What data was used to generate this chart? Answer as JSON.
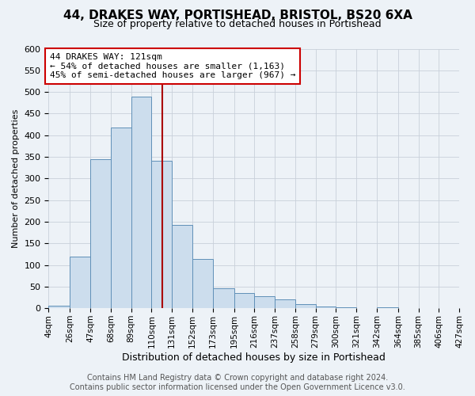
{
  "title_line1": "44, DRAKES WAY, PORTISHEAD, BRISTOL, BS20 6XA",
  "title_line2": "Size of property relative to detached houses in Portishead",
  "xlabel": "Distribution of detached houses by size in Portishead",
  "ylabel": "Number of detached properties",
  "bin_edges": [
    4,
    26,
    47,
    68,
    89,
    110,
    131,
    152,
    173,
    195,
    216,
    237,
    258,
    279,
    300,
    321,
    342,
    364,
    385,
    406,
    427
  ],
  "bin_counts": [
    5,
    120,
    345,
    417,
    490,
    340,
    192,
    113,
    46,
    35,
    28,
    20,
    10,
    4,
    3,
    1,
    2,
    1,
    0,
    1
  ],
  "bar_color": "#ccdded",
  "bar_edge_color": "#6090b8",
  "vline_color": "#aa0000",
  "vline_x": 121,
  "annotation_text_line1": "44 DRAKES WAY: 121sqm",
  "annotation_text_line2": "← 54% of detached houses are smaller (1,163)",
  "annotation_text_line3": "45% of semi-detached houses are larger (967) →",
  "annotation_box_color": "#ffffff",
  "annotation_box_edge": "#cc0000",
  "ylim": [
    0,
    600
  ],
  "yticks": [
    0,
    50,
    100,
    150,
    200,
    250,
    300,
    350,
    400,
    450,
    500,
    550,
    600
  ],
  "tick_labels": [
    "4sqm",
    "26sqm",
    "47sqm",
    "68sqm",
    "89sqm",
    "110sqm",
    "131sqm",
    "152sqm",
    "173sqm",
    "195sqm",
    "216sqm",
    "237sqm",
    "258sqm",
    "279sqm",
    "300sqm",
    "321sqm",
    "342sqm",
    "364sqm",
    "385sqm",
    "406sqm",
    "427sqm"
  ],
  "footer_line1": "Contains HM Land Registry data © Crown copyright and database right 2024.",
  "footer_line2": "Contains public sector information licensed under the Open Government Licence v3.0.",
  "grid_color": "#c8d0da",
  "background_color": "#edf2f7",
  "title_fontsize": 11,
  "subtitle_fontsize": 9,
  "xlabel_fontsize": 9,
  "ylabel_fontsize": 8,
  "annot_fontsize": 8,
  "footer_fontsize": 7
}
